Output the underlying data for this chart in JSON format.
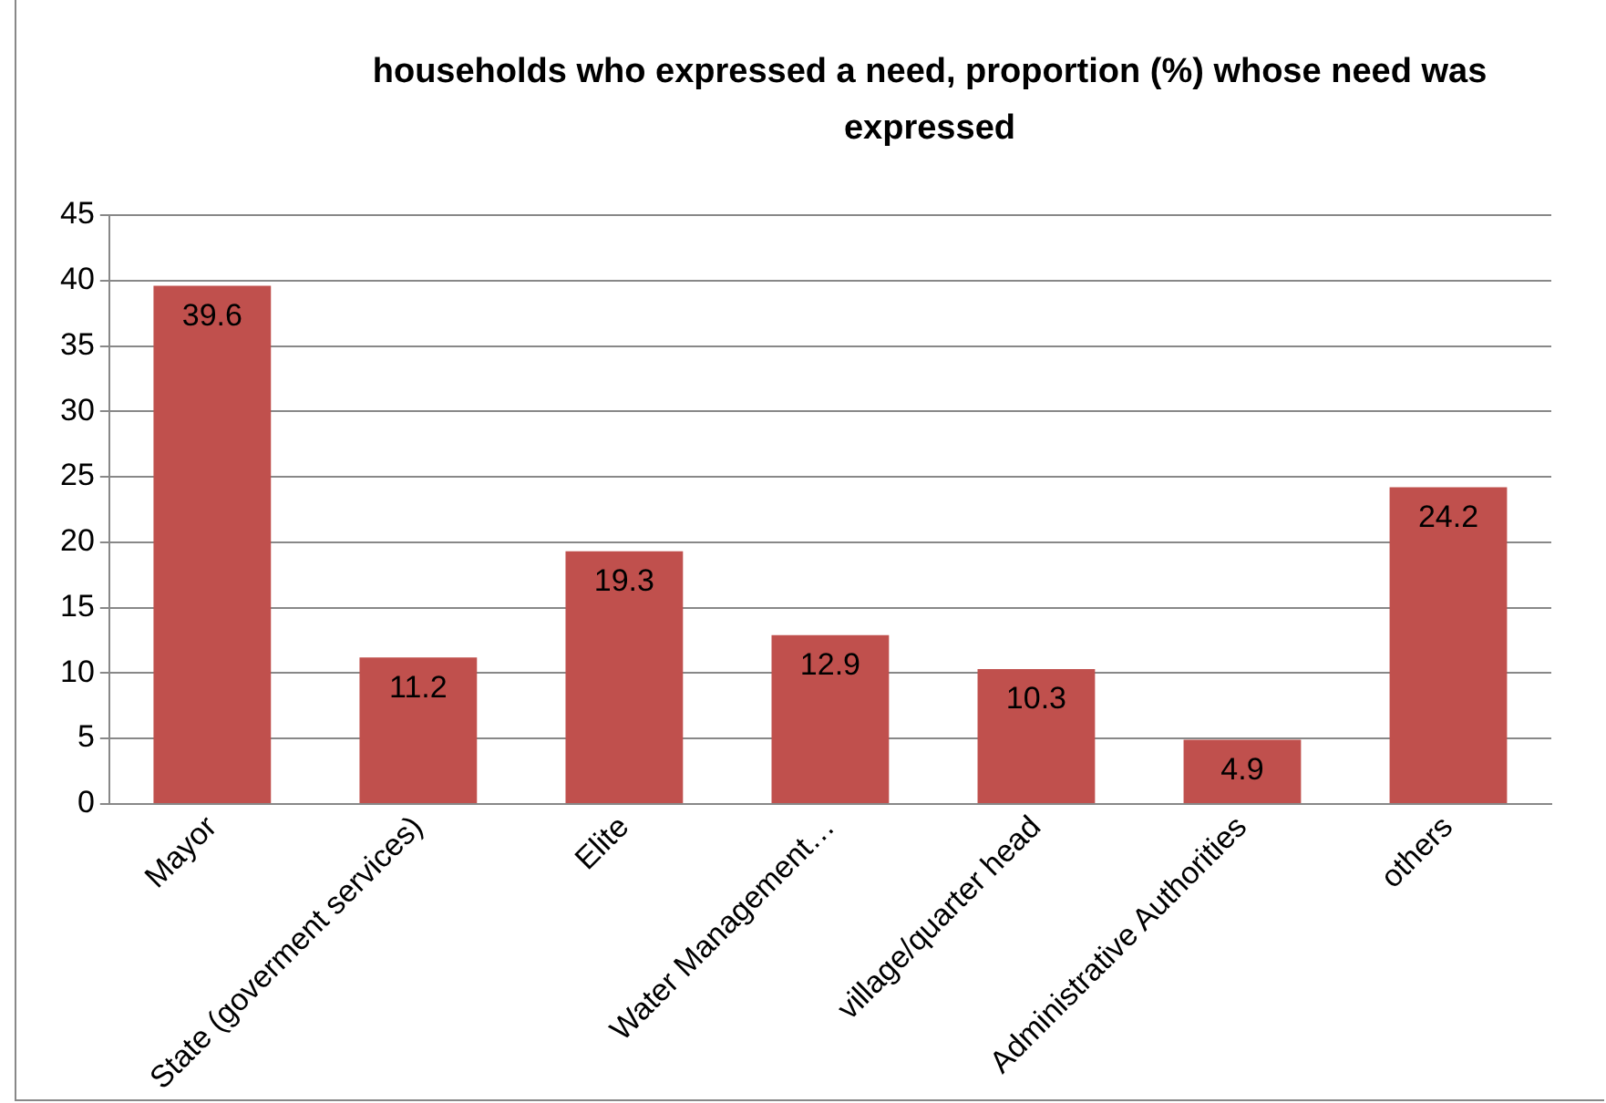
{
  "chart_data": {
    "type": "bar",
    "title": "households  who expressed a need,  proportion (%) whose need was expressed",
    "categories": [
      "Mayor",
      "State (goverment services)",
      "Elite",
      "Water Management…",
      "village/quarter head",
      "Administrative Authorities",
      "others"
    ],
    "values": [
      39.6,
      11.2,
      19.3,
      12.9,
      10.3,
      4.9,
      24.2
    ],
    "color": "#c0504d",
    "ylim": [
      0,
      45
    ],
    "yticks": [
      0,
      5,
      10,
      15,
      20,
      25,
      30,
      35,
      40,
      45
    ],
    "grid": "y",
    "data_labels": true,
    "legend": false
  }
}
